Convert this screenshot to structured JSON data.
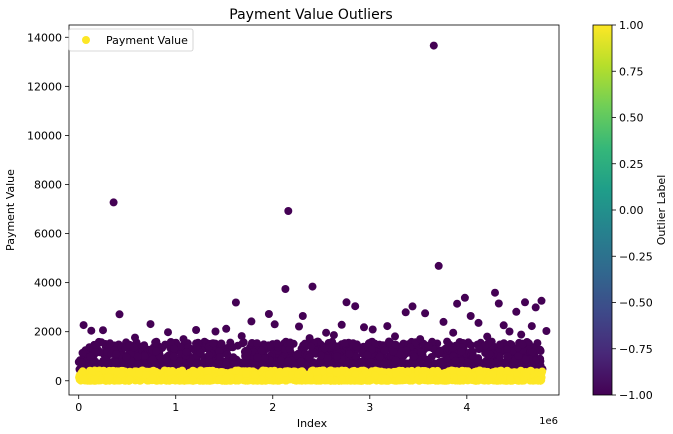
{
  "chart_data": {
    "type": "scatter",
    "title": "Payment Value Outliers",
    "xlabel": "Index",
    "ylabel": "Payment Value",
    "x_offset_label": "1e6",
    "xlim": [
      -0.1,
      4.95
    ],
    "ylim": [
      -580,
      14500
    ],
    "x_ticks": [
      0,
      1,
      2,
      3,
      4
    ],
    "x_tick_labels": [
      "0",
      "1",
      "2",
      "3",
      "4"
    ],
    "y_ticks": [
      0,
      2000,
      4000,
      6000,
      8000,
      10000,
      12000,
      14000
    ],
    "y_tick_labels": [
      "0",
      "2000",
      "4000",
      "6000",
      "8000",
      "10000",
      "12000",
      "14000"
    ],
    "grid": false,
    "legend": {
      "position": "top-left",
      "entries": [
        "Payment Value"
      ]
    },
    "marker_color_normal": "#fde725",
    "marker_color_outlier": "#440154",
    "series": [
      {
        "name": "Payment Value",
        "outlier_label": -1,
        "points": [
          [
            0.36,
            7270
          ],
          [
            2.16,
            6920
          ],
          [
            3.66,
            13660
          ],
          [
            3.71,
            4680
          ],
          [
            2.41,
            3840
          ],
          [
            2.13,
            3740
          ],
          [
            4.29,
            3590
          ],
          [
            3.98,
            3380
          ],
          [
            1.62,
            3190
          ],
          [
            2.76,
            3200
          ],
          [
            3.44,
            3030
          ],
          [
            3.9,
            3140
          ],
          [
            4.33,
            3150
          ],
          [
            4.6,
            3200
          ],
          [
            4.77,
            3260
          ],
          [
            2.85,
            3040
          ],
          [
            0.42,
            2710
          ],
          [
            1.96,
            2720
          ],
          [
            2.31,
            2640
          ],
          [
            3.37,
            2790
          ],
          [
            3.57,
            2750
          ],
          [
            4.04,
            2640
          ],
          [
            4.51,
            2810
          ],
          [
            4.71,
            2990
          ],
          [
            0.05,
            2270
          ],
          [
            0.25,
            2060
          ],
          [
            0.74,
            2310
          ],
          [
            1.21,
            2070
          ],
          [
            1.52,
            2120
          ],
          [
            1.78,
            2420
          ],
          [
            2.02,
            2300
          ],
          [
            2.27,
            2210
          ],
          [
            2.71,
            2280
          ],
          [
            2.94,
            2180
          ],
          [
            3.18,
            2230
          ],
          [
            3.76,
            2400
          ],
          [
            4.12,
            2360
          ],
          [
            4.38,
            2260
          ],
          [
            4.67,
            2230
          ],
          [
            0.13,
            2040
          ],
          [
            0.92,
            1980
          ],
          [
            1.41,
            2010
          ],
          [
            2.55,
            1960
          ],
          [
            3.03,
            2090
          ],
          [
            3.86,
            1960
          ],
          [
            4.44,
            2010
          ],
          [
            4.82,
            2030
          ],
          [
            0.58,
            1760
          ],
          [
            1.08,
            1700
          ],
          [
            1.68,
            1820
          ],
          [
            2.38,
            1740
          ],
          [
            2.63,
            1860
          ],
          [
            3.26,
            1810
          ],
          [
            3.52,
            1700
          ],
          [
            4.21,
            1800
          ],
          [
            4.56,
            1880
          ]
        ],
        "band": {
          "x_range": [
            0.0,
            4.78
          ],
          "y_range": [
            420,
            1600
          ],
          "count": 1400,
          "label": -1
        }
      },
      {
        "name": "Payment Value",
        "outlier_label": 1,
        "band": {
          "x_range": [
            0.0,
            4.78
          ],
          "y_range": [
            0,
            420
          ],
          "count": 1600,
          "label": 1
        }
      }
    ],
    "colorbar": {
      "label": "Outlier Label",
      "range": [
        -1.0,
        1.0
      ],
      "ticks": [
        1.0,
        0.75,
        0.5,
        0.25,
        0.0,
        -0.25,
        -0.5,
        -0.75,
        -1.0
      ],
      "tick_labels": [
        "1.00",
        "0.75",
        "0.50",
        "0.25",
        "0.00",
        "−0.25",
        "−0.50",
        "−0.75",
        "−1.00"
      ],
      "colormap": "viridis",
      "stops": [
        "#440154",
        "#482878",
        "#3e4989",
        "#31688e",
        "#26828e",
        "#1f9e89",
        "#35b779",
        "#6ece58",
        "#b5de2b",
        "#fde725"
      ]
    }
  }
}
